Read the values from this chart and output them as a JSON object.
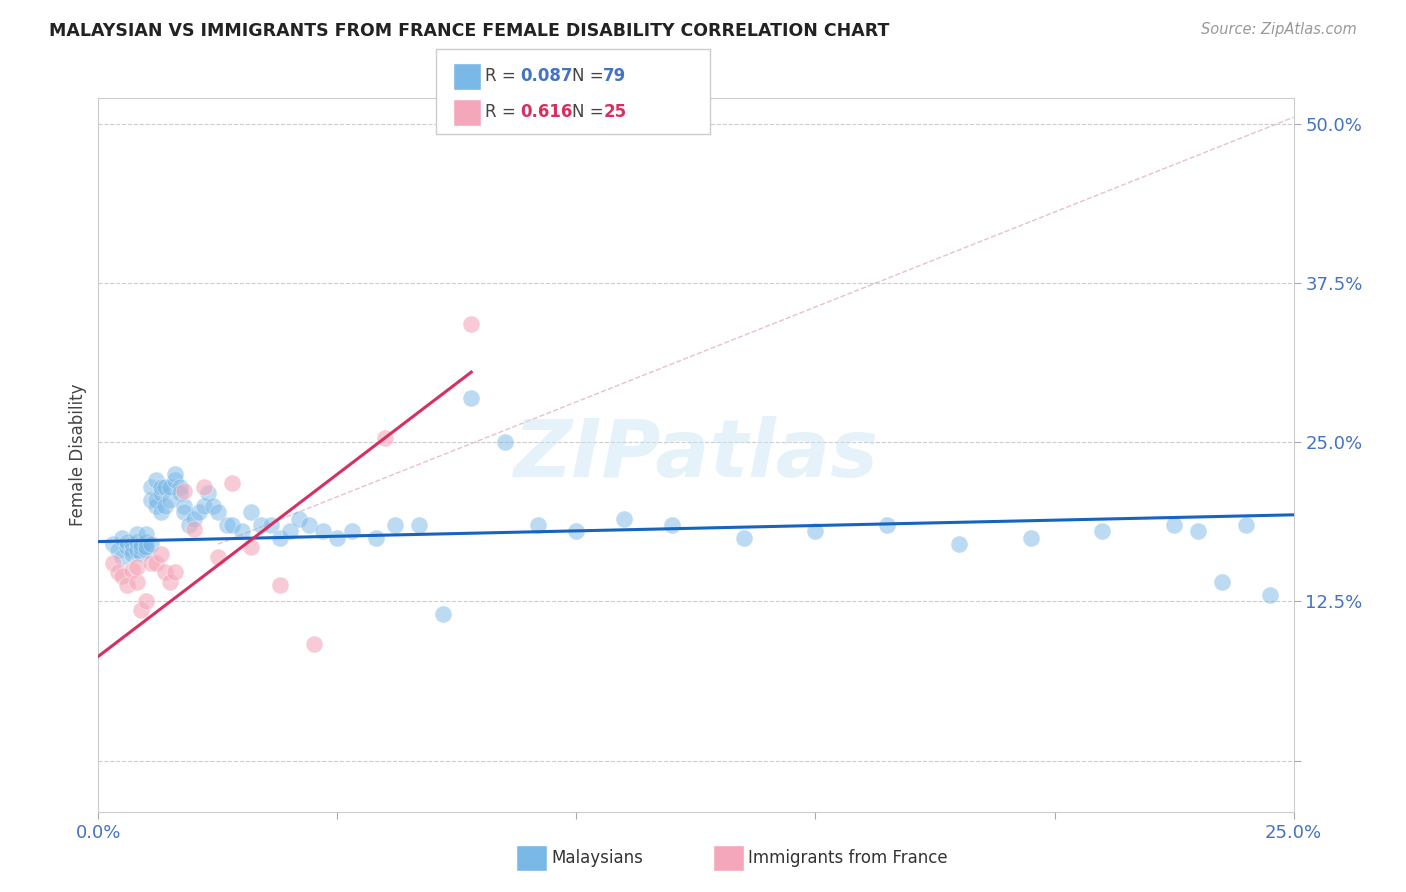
{
  "title": "MALAYSIAN VS IMMIGRANTS FROM FRANCE FEMALE DISABILITY CORRELATION CHART",
  "source": "Source: ZipAtlas.com",
  "ylabel": "Female Disability",
  "xlim": [
    0.0,
    0.25
  ],
  "ylim": [
    -0.04,
    0.52
  ],
  "yticks": [
    0.0,
    0.125,
    0.25,
    0.375,
    0.5
  ],
  "ytick_labels": [
    "",
    "12.5%",
    "25.0%",
    "37.5%",
    "50.0%"
  ],
  "xtick_labels": [
    "0.0%",
    "",
    "",
    "",
    "",
    "25.0%"
  ],
  "watermark": "ZIPatlas",
  "blue_color": "#7ab8e8",
  "pink_color": "#f4a7ba",
  "line_blue": "#1565c0",
  "line_pink": "#d63060",
  "line_dashed_color": "#e8c0d0",
  "malaysians_x": [
    0.003,
    0.004,
    0.005,
    0.005,
    0.006,
    0.006,
    0.007,
    0.007,
    0.007,
    0.008,
    0.008,
    0.008,
    0.009,
    0.009,
    0.009,
    0.01,
    0.01,
    0.01,
    0.01,
    0.011,
    0.011,
    0.011,
    0.012,
    0.012,
    0.012,
    0.013,
    0.013,
    0.013,
    0.014,
    0.014,
    0.015,
    0.015,
    0.016,
    0.016,
    0.017,
    0.017,
    0.018,
    0.018,
    0.019,
    0.02,
    0.021,
    0.022,
    0.023,
    0.024,
    0.025,
    0.027,
    0.028,
    0.03,
    0.032,
    0.034,
    0.036,
    0.038,
    0.04,
    0.042,
    0.044,
    0.047,
    0.05,
    0.053,
    0.058,
    0.062,
    0.067,
    0.072,
    0.078,
    0.085,
    0.092,
    0.1,
    0.11,
    0.12,
    0.135,
    0.15,
    0.165,
    0.18,
    0.195,
    0.21,
    0.225,
    0.23,
    0.235,
    0.24,
    0.245
  ],
  "malaysians_y": [
    0.17,
    0.165,
    0.16,
    0.175,
    0.168,
    0.172,
    0.165,
    0.17,
    0.162,
    0.165,
    0.172,
    0.178,
    0.163,
    0.17,
    0.168,
    0.165,
    0.172,
    0.178,
    0.168,
    0.17,
    0.205,
    0.215,
    0.2,
    0.205,
    0.22,
    0.195,
    0.21,
    0.215,
    0.2,
    0.215,
    0.205,
    0.215,
    0.22,
    0.225,
    0.215,
    0.21,
    0.2,
    0.195,
    0.185,
    0.19,
    0.195,
    0.2,
    0.21,
    0.2,
    0.195,
    0.185,
    0.185,
    0.18,
    0.195,
    0.185,
    0.185,
    0.175,
    0.18,
    0.19,
    0.185,
    0.18,
    0.175,
    0.18,
    0.175,
    0.185,
    0.185,
    0.115,
    0.285,
    0.25,
    0.185,
    0.18,
    0.19,
    0.185,
    0.175,
    0.18,
    0.185,
    0.17,
    0.175,
    0.18,
    0.185,
    0.18,
    0.14,
    0.185,
    0.13
  ],
  "france_x": [
    0.003,
    0.004,
    0.005,
    0.006,
    0.007,
    0.008,
    0.008,
    0.009,
    0.01,
    0.011,
    0.012,
    0.013,
    0.014,
    0.015,
    0.016,
    0.018,
    0.02,
    0.022,
    0.025,
    0.028,
    0.032,
    0.038,
    0.045,
    0.06,
    0.078
  ],
  "france_y": [
    0.155,
    0.148,
    0.145,
    0.138,
    0.15,
    0.14,
    0.152,
    0.118,
    0.125,
    0.155,
    0.155,
    0.162,
    0.148,
    0.14,
    0.148,
    0.212,
    0.182,
    0.215,
    0.16,
    0.218,
    0.168,
    0.138,
    0.092,
    0.253,
    0.343
  ],
  "blue_line_x": [
    0.0,
    0.25
  ],
  "blue_line_y": [
    0.172,
    0.193
  ],
  "pink_line_x": [
    0.0,
    0.078
  ],
  "pink_line_y": [
    0.082,
    0.305
  ],
  "dashed_line_x": [
    0.025,
    0.25
  ],
  "dashed_line_y": [
    0.17,
    0.505
  ]
}
